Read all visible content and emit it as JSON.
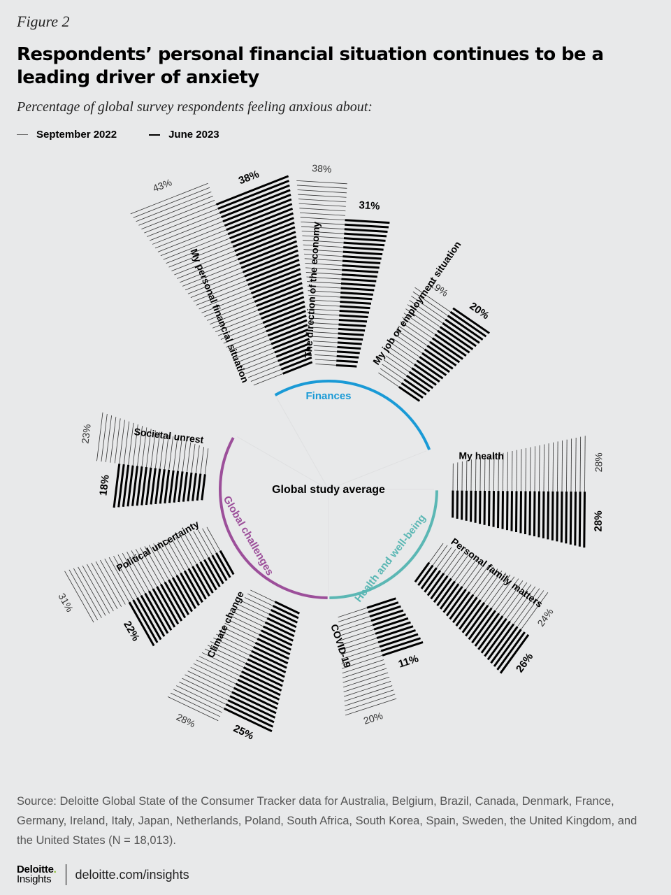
{
  "figure_label": "Figure 2",
  "title": "Respondents’ personal financial situation continues to be a leading driver of anxiety",
  "subtitle": "Percentage of global survey respondents feeling anxious about:",
  "legend": {
    "sep": "September 2022",
    "jun": "June 2023"
  },
  "center_label": "Global study average",
  "colors": {
    "finances": "#1a9ad6",
    "health": "#5bb7b4",
    "global": "#9c4f9a",
    "background": "#e8e9ea"
  },
  "chart_data": {
    "type": "radial-bar",
    "series": [
      "September 2022",
      "June 2023"
    ],
    "groups": [
      {
        "name": "Finances",
        "color": "#1a9ad6"
      },
      {
        "name": "Health and well-being",
        "color": "#5bb7b4"
      },
      {
        "name": "Global challenges",
        "color": "#9c4f9a"
      }
    ],
    "categories": [
      {
        "label": "My personal financial situation",
        "group": "Finances",
        "sep2022": 43,
        "jun2023": 38
      },
      {
        "label": "The direction of the economy",
        "group": "Finances",
        "sep2022": 38,
        "jun2023": 31
      },
      {
        "label": "My job or employment situation",
        "group": "Finances",
        "sep2022": 19,
        "jun2023": 20
      },
      {
        "label": "My health",
        "group": "Health and well-being",
        "sep2022": 28,
        "jun2023": 28
      },
      {
        "label": "Personal family matters",
        "group": "Health and well-being",
        "sep2022": 24,
        "jun2023": 26
      },
      {
        "label": "COVID-19",
        "group": "Health and well-being",
        "sep2022": 20,
        "jun2023": 11
      },
      {
        "label": "Climate change",
        "group": "Global challenges",
        "sep2022": 28,
        "jun2023": 25
      },
      {
        "label": "Political uncertainty",
        "group": "Global challenges",
        "sep2022": 31,
        "jun2023": 22
      },
      {
        "label": "Societal unrest",
        "group": "Global challenges",
        "sep2022": 23,
        "jun2023": 18
      }
    ]
  },
  "source": "Source: Deloitte Global State of the Consumer Tracker data for Australia, Belgium, Brazil, Canada, Denmark, France, Germany, Ireland, Italy, Japan, Netherlands, Poland, South Africa, South Korea, Spain, Sweden, the United Kingdom, and the United States (N = 18,013).",
  "footer": {
    "brand": "Deloitte",
    "brand_dot": ".",
    "brand_sub": "Insights",
    "url": "deloitte.com/insights"
  }
}
